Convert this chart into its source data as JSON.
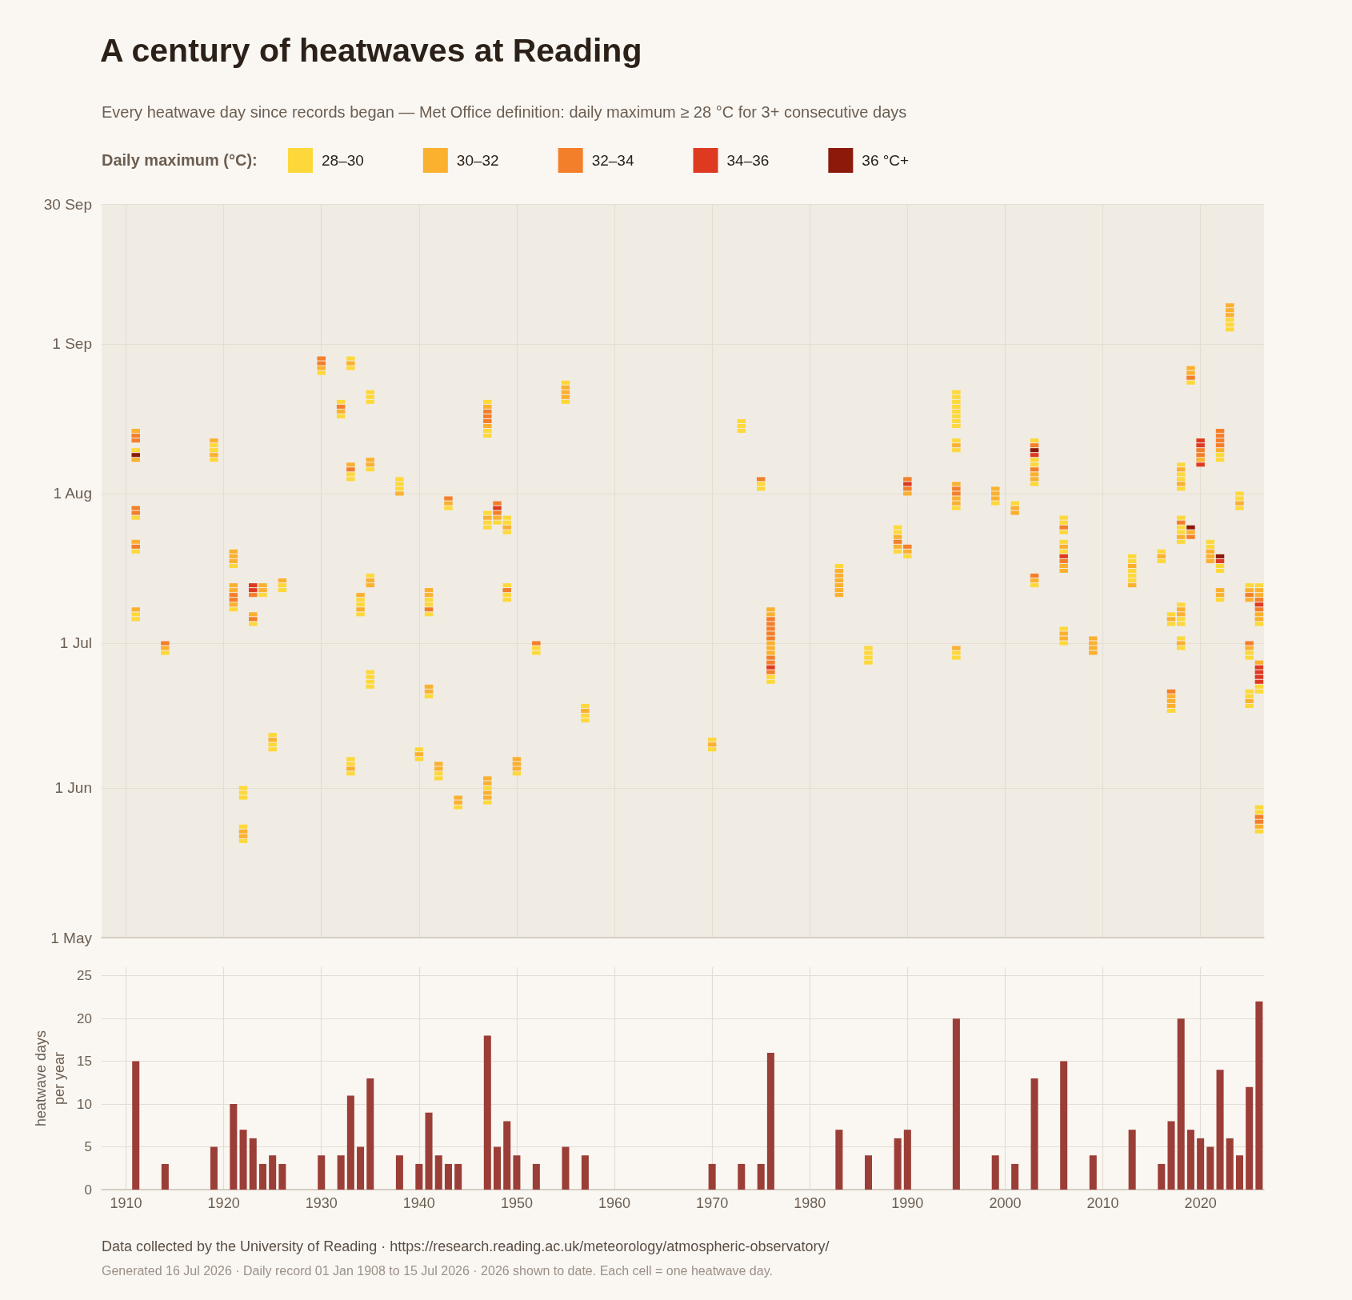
{
  "chart_data": [
    {
      "type": "scatter",
      "orientation": "horizontal",
      "title": "A century of heatwaves at Reading",
      "subtitle": "Every heatwave day since records began — Met Office definition: daily maximum ≥ 28 °C for 3+ consecutive days",
      "legend_title": "Daily maximum (°C):",
      "legend": "top left",
      "marker": "square",
      "grid": true,
      "tick_labels": "y",
      "xlim": [
        1907.5,
        2026.5
      ],
      "xticks": [
        1910,
        1920,
        1930,
        1940,
        1950,
        1960,
        1970,
        1980,
        1990,
        2000,
        2010,
        2020
      ],
      "ylim": [
        "--05-01",
        "--09-30"
      ],
      "yticks": [
        {
          "value": "--05-01",
          "label": "1 May"
        },
        {
          "value": "--06-01",
          "label": "1 Jun"
        },
        {
          "value": "--07-01",
          "label": "1 Jul"
        },
        {
          "value": "--08-01",
          "label": "1 Aug"
        },
        {
          "value": "--09-01",
          "label": "1 Sep"
        },
        {
          "value": "--09-30",
          "label": "30 Sep"
        }
      ],
      "series": [
        {
          "name": "28–30",
          "color": "#fdd83a",
          "values": [
            1911,
            1911,
            1911,
            1911,
            1911,
            1914,
            1919,
            1919,
            1919,
            1921,
            1921,
            1922,
            1922,
            1922,
            1922,
            1922,
            1923,
            1924,
            1925,
            1925,
            1925,
            1926,
            1926,
            1930,
            1932,
            1932,
            1933,
            1933,
            1933,
            1933,
            1933,
            1933,
            1933,
            1934,
            1934,
            1934,
            1935,
            1935,
            1935,
            1935,
            1935,
            1935,
            1935,
            1935,
            1935,
            1938,
            1938,
            1938,
            1940,
            1940,
            1941,
            1941,
            1941,
            1941,
            1942,
            1942,
            1943,
            1944,
            1947,
            1947,
            1947,
            1947,
            1947,
            1947,
            1947,
            1947,
            1948,
            1949,
            1949,
            1949,
            1949,
            1949,
            1949,
            1950,
            1952,
            1952,
            1955,
            1955,
            1957,
            1957,
            1957,
            1970,
            1970,
            1973,
            1973,
            1973,
            1975,
            1975,
            1976,
            1976,
            1983,
            1986,
            1986,
            1986,
            1986,
            1989,
            1989,
            1989,
            1990,
            1995,
            1995,
            1995,
            1995,
            1995,
            1995,
            1995,
            1995,
            1995,
            1995,
            1995,
            1995,
            1995,
            1999,
            2001,
            2003,
            2003,
            2003,
            2003,
            2003,
            2006,
            2006,
            2006,
            2006,
            2006,
            2006,
            2006,
            2013,
            2013,
            2013,
            2013,
            2013,
            2016,
            2016,
            2017,
            2017,
            2017,
            2018,
            2018,
            2018,
            2018,
            2018,
            2018,
            2018,
            2018,
            2018,
            2018,
            2018,
            2018,
            2018,
            2019,
            2021,
            2021,
            2022,
            2022,
            2022,
            2022,
            2022,
            2023,
            2023,
            2023,
            2024,
            2024,
            2024,
            2025,
            2025,
            2025,
            2025,
            2025,
            2025,
            2026,
            2026,
            2026,
            2026,
            2026,
            2026,
            2026
          ],
          "x": [
            "--08-10",
            "--07-27",
            "--07-20",
            "--07-07",
            "--07-06",
            "--06-29",
            "--08-11",
            "--08-10",
            "--08-08",
            "--07-17",
            "--07-08",
            "--06-01",
            "--05-31",
            "--05-30",
            "--05-24",
            "--05-21",
            "--07-05",
            "--07-11",
            "--06-12",
            "--06-10",
            "--06-09",
            "--07-13",
            "--07-12",
            "--08-26",
            "--08-20",
            "--08-17",
            "--08-29",
            "--08-27",
            "--08-05",
            "--08-04",
            "--06-07",
            "--06-06",
            "--06-04",
            "--07-10",
            "--07-09",
            "--07-07",
            "--08-22",
            "--08-21",
            "--08-20",
            "--08-06",
            "--07-15",
            "--06-25",
            "--06-24",
            "--06-23",
            "--06-22",
            "--08-04",
            "--08-03",
            "--08-02",
            "--06-09",
            "--06-07",
            "--07-10",
            "--07-09",
            "--07-07",
            "--06-20",
            "--06-04",
            "--06-03",
            "--07-29",
            "--05-28",
            "--08-20",
            "--08-14",
            "--08-13",
            "--07-28",
            "--07-26",
            "--07-25",
            "--06-01",
            "--05-29",
            "--07-26",
            "--07-27",
            "--07-26",
            "--07-24",
            "--07-13",
            "--07-11",
            "--07-10",
            "--06-04",
            "--06-30",
            "--06-29",
            "--08-24",
            "--08-20",
            "--06-18",
            "--06-16",
            "--06-15",
            "--06-11",
            "--06-09",
            "--08-16",
            "--08-15",
            "--08-14",
            "--08-03",
            "--08-02",
            "--06-24",
            "--06-23",
            "--07-17",
            "--06-30",
            "--06-29",
            "--06-28",
            "--06-27",
            "--07-25",
            "--07-24",
            "--07-20",
            "--07-19",
            "--08-22",
            "--08-21",
            "--08-20",
            "--08-19",
            "--08-18",
            "--08-17",
            "--08-16",
            "--08-15",
            "--08-12",
            "--08-10",
            "--07-29",
            "--06-29",
            "--06-28",
            "--07-30",
            "--07-30",
            "--08-12",
            "--08-08",
            "--08-07",
            "--08-03",
            "--07-13",
            "--07-27",
            "--07-26",
            "--07-24",
            "--07-22",
            "--07-20",
            "--07-04",
            "--07-01",
            "--07-19",
            "--07-18",
            "--07-16",
            "--07-15",
            "--07-14",
            "--07-20",
            "--07-18",
            "--07-07",
            "--07-05",
            "--06-17",
            "--08-07",
            "--08-05",
            "--08-04",
            "--08-02",
            "--07-27",
            "--07-25",
            "--07-24",
            "--07-22",
            "--07-09",
            "--07-06",
            "--07-05",
            "--07-02",
            "--06-30",
            "--08-24",
            "--07-22",
            "--07-21",
            "--08-09",
            "--08-08",
            "--07-17",
            "--07-16",
            "--07-10",
            "--09-06",
            "--09-05",
            "--09-04",
            "--08-01",
            "--07-31",
            "--07-29",
            "--07-13",
            "--06-29",
            "--06-28",
            "--06-21",
            "--06-20",
            "--06-18",
            "--07-13",
            "--07-05",
            "--06-22",
            "--06-21",
            "--05-28",
            "--05-27",
            "--05-23"
          ]
        },
        {
          "name": "30–32",
          "color": "#fbb02f",
          "values": [
            1911,
            1911,
            1911,
            1911,
            1914,
            1919,
            1919,
            1921,
            1921,
            1921,
            1921,
            1921,
            1921,
            1922,
            1922,
            1923,
            1924,
            1924,
            1925,
            1926,
            1930,
            1932,
            1933,
            1933,
            1933,
            1934,
            1934,
            1935,
            1935,
            1935,
            1935,
            1938,
            1940,
            1941,
            1941,
            1941,
            1941,
            1942,
            1942,
            1943,
            1944,
            1944,
            1947,
            1947,
            1947,
            1947,
            1947,
            1947,
            1947,
            1948,
            1949,
            1950,
            1950,
            1950,
            1955,
            1955,
            1955,
            1957,
            1970,
            1976,
            1976,
            1976,
            1976,
            1976,
            1983,
            1983,
            1983,
            1983,
            1983,
            1983,
            1989,
            1989,
            1990,
            1990,
            1995,
            1995,
            1995,
            1995,
            1995,
            1999,
            1999,
            1999,
            2001,
            2001,
            2003,
            2003,
            2003,
            2006,
            2006,
            2006,
            2006,
            2006,
            2009,
            2009,
            2009,
            2009,
            2013,
            2013,
            2016,
            2017,
            2017,
            2017,
            2017,
            2018,
            2018,
            2018,
            2018,
            2018,
            2018,
            2019,
            2019,
            2019,
            2020,
            2021,
            2021,
            2021,
            2022,
            2022,
            2022,
            2023,
            2023,
            2023,
            2024,
            2025,
            2025,
            2025,
            2025,
            2026,
            2026,
            2026,
            2026,
            2026,
            2026
          ],
          "x": [
            "--08-14",
            "--08-08",
            "--07-22",
            "--07-08",
            "--06-30",
            "--08-12",
            "--08-09",
            "--07-20",
            "--07-19",
            "--07-18",
            "--07-13",
            "--07-12",
            "--07-09",
            "--05-23",
            "--05-22",
            "--07-07",
            "--07-13",
            "--07-12",
            "--06-11",
            "--07-14",
            "--08-27",
            "--08-18",
            "--08-28",
            "--08-07",
            "--06-05",
            "--07-11",
            "--07-08",
            "--08-08",
            "--08-07",
            "--07-14",
            "--07-13",
            "--08-01",
            "--06-08",
            "--07-12",
            "--07-11",
            "--06-22",
            "--06-21",
            "--06-06",
            "--06-05",
            "--07-30",
            "--05-30",
            "--05-29",
            "--08-19",
            "--08-15",
            "--07-27",
            "--06-03",
            "--06-02",
            "--05-31",
            "--05-30",
            "--07-27",
            "--07-25",
            "--06-07",
            "--06-06",
            "--06-05",
            "--08-23",
            "--08-22",
            "--08-21",
            "--06-17",
            "--06-10",
            "--07-08",
            "--07-07",
            "--07-01",
            "--06-30",
            "--06-29",
            "--07-16",
            "--07-15",
            "--07-14",
            "--07-13",
            "--07-12",
            "--07-11",
            "--07-23",
            "--07-21",
            "--08-01",
            "--07-20",
            "--08-11",
            "--08-03",
            "--07-31",
            "--07-30",
            "--06-30",
            "--08-02",
            "--08-01",
            "--07-31",
            "--07-29",
            "--07-28",
            "--08-05",
            "--08-04",
            "--07-14",
            "--07-21",
            "--07-17",
            "--07-16",
            "--07-03",
            "--07-02",
            "--07-02",
            "--07-01",
            "--06-30",
            "--06-29",
            "--07-17",
            "--07-13",
            "--07-19",
            "--07-06",
            "--06-20",
            "--06-19",
            "--06-18",
            "--08-06",
            "--08-03",
            "--07-23",
            "--07-08",
            "--07-07",
            "--07-01",
            "--08-27",
            "--08-26",
            "--07-24",
            "--08-08",
            "--07-20",
            "--07-19",
            "--07-18",
            "--08-10",
            "--07-12",
            "--07-11",
            "--09-09",
            "--09-08",
            "--09-07",
            "--07-30",
            "--07-12",
            "--07-10",
            "--06-30",
            "--06-19",
            "--07-12",
            "--07-11",
            "--07-07",
            "--07-06",
            "--06-27",
            "--05-24"
          ]
        },
        {
          "name": "32–34",
          "color": "#f47f2a",
          "values": [
            1911,
            1911,
            1911,
            1911,
            1911,
            1914,
            1921,
            1921,
            1923,
            1923,
            1930,
            1930,
            1932,
            1933,
            1941,
            1943,
            1947,
            1947,
            1947,
            1948,
            1948,
            1949,
            1952,
            1975,
            1976,
            1976,
            1976,
            1976,
            1976,
            1976,
            1976,
            1976,
            1989,
            1990,
            1990,
            1990,
            1995,
            1995,
            2003,
            2003,
            2003,
            2006,
            2006,
            2017,
            2018,
            2019,
            2019,
            2020,
            2020,
            2022,
            2022,
            2022,
            2022,
            2025,
            2025,
            2026,
            2026,
            2026,
            2026
          ],
          "x": [
            "--08-13",
            "--08-12",
            "--07-29",
            "--07-28",
            "--07-21",
            "--07-01",
            "--07-11",
            "--07-10",
            "--07-11",
            "--07-06",
            "--08-29",
            "--08-28",
            "--08-19",
            "--08-06",
            "--07-08",
            "--07-31",
            "--08-18",
            "--08-17",
            "--08-16",
            "--07-30",
            "--07-28",
            "--07-12",
            "--07-01",
            "--08-04",
            "--07-06",
            "--07-05",
            "--07-04",
            "--07-03",
            "--07-02",
            "--06-28",
            "--06-27",
            "--06-25",
            "--07-22",
            "--08-04",
            "--08-02",
            "--07-21",
            "--08-02",
            "--08-01",
            "--08-11",
            "--08-06",
            "--07-15",
            "--07-25",
            "--07-18",
            "--06-21",
            "--07-26",
            "--08-25",
            "--07-23",
            "--08-10",
            "--08-09",
            "--08-14",
            "--08-13",
            "--08-12",
            "--08-11",
            "--07-11",
            "--07-01",
            "--07-10",
            "--07-08",
            "--05-26",
            "--05-25"
          ]
        },
        {
          "name": "34–36",
          "color": "#de3a22",
          "values": [
            1923,
            1923,
            1948,
            1976,
            1990,
            2003,
            2006,
            2020,
            2020,
            2020,
            2022,
            2026,
            2026,
            2026,
            2026,
            2026
          ],
          "x": [
            "--07-13",
            "--07-12",
            "--07-29",
            "--06-26",
            "--08-03",
            "--08-09",
            "--07-19",
            "--08-12",
            "--08-11",
            "--08-07",
            "--07-18",
            "--07-09",
            "--06-26",
            "--06-25",
            "--06-24",
            "--06-23"
          ]
        },
        {
          "name": "36 °C+",
          "color": "#8c1a0b",
          "values": [
            1911,
            2003,
            2019,
            2022
          ],
          "x": [
            "--08-09",
            "--08-10",
            "--07-25",
            "--07-19"
          ]
        }
      ]
    },
    {
      "type": "bar",
      "ylabel": "heatwave days\nper year",
      "color": "#9b3e37",
      "grid": true,
      "xlim": [
        1907.5,
        2026.5
      ],
      "xticks": [
        1910,
        1920,
        1930,
        1940,
        1950,
        1960,
        1970,
        1980,
        1990,
        2000,
        2010,
        2020
      ],
      "ylim": [
        0,
        26
      ],
      "yticks": [
        0,
        5,
        10,
        15,
        20,
        25
      ],
      "x": [
        1911,
        1914,
        1919,
        1921,
        1922,
        1923,
        1924,
        1925,
        1926,
        1930,
        1932,
        1933,
        1934,
        1935,
        1938,
        1940,
        1941,
        1942,
        1943,
        1944,
        1947,
        1948,
        1949,
        1950,
        1952,
        1955,
        1957,
        1970,
        1973,
        1975,
        1976,
        1983,
        1986,
        1989,
        1990,
        1995,
        1999,
        2001,
        2003,
        2006,
        2009,
        2013,
        2016,
        2017,
        2018,
        2019,
        2020,
        2021,
        2022,
        2023,
        2024,
        2025,
        2026
      ],
      "values": [
        15,
        3,
        5,
        10,
        7,
        6,
        3,
        4,
        3,
        4,
        4,
        11,
        5,
        13,
        4,
        3,
        9,
        4,
        3,
        3,
        18,
        5,
        8,
        4,
        3,
        5,
        4,
        3,
        3,
        3,
        16,
        7,
        4,
        6,
        7,
        20,
        4,
        3,
        13,
        15,
        4,
        7,
        3,
        8,
        20,
        7,
        6,
        5,
        14,
        6,
        4,
        12,
        22
      ],
      "annotations": [
        "Data collected by the University of Reading · https://research.reading.ac.uk/meteorology/atmospheric-observatory/",
        "Generated 16 Jul 2026 · Daily record 01 Jan 1908 to 15 Jul 2026 · 2026 shown to date. Each cell = one heatwave day."
      ]
    }
  ]
}
